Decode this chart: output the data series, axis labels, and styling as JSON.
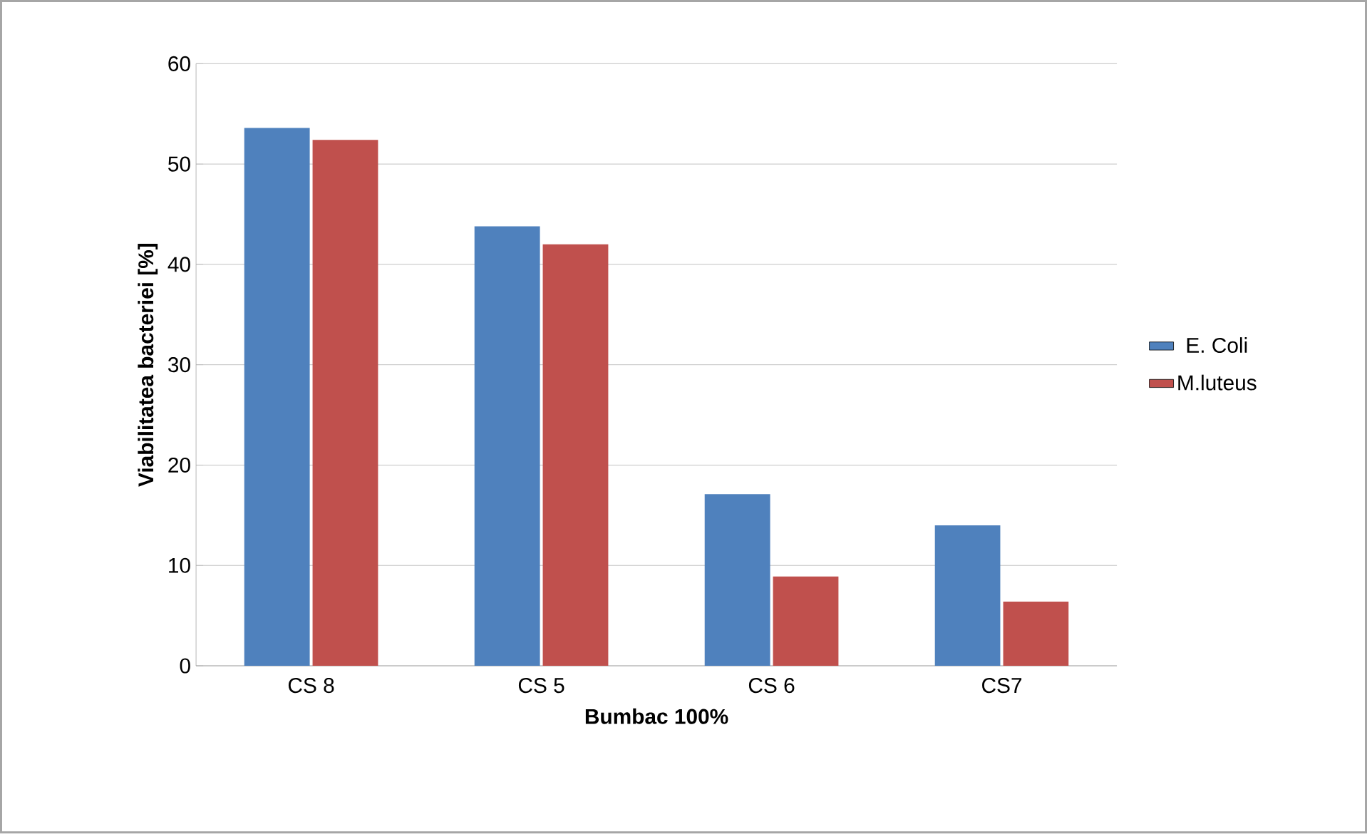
{
  "chart_data": {
    "type": "bar",
    "xlabel": "Bumbac 100%",
    "ylabel": "Viabilitatea bacteriei [%]",
    "categories": [
      "CS 8",
      "CS 5",
      "CS 6",
      "CS7"
    ],
    "series": [
      {
        "name": "E. Coli",
        "color": "#4f81bd",
        "values": [
          53.6,
          43.8,
          17.1,
          14.0
        ]
      },
      {
        "name": "M.luteus",
        "color": "#c0504d",
        "values": [
          52.4,
          42.0,
          8.9,
          6.4
        ]
      }
    ],
    "ylim": [
      0,
      60
    ],
    "yticks": [
      0,
      10,
      20,
      30,
      40,
      50,
      60
    ],
    "grid": "y",
    "legend": "right"
  }
}
